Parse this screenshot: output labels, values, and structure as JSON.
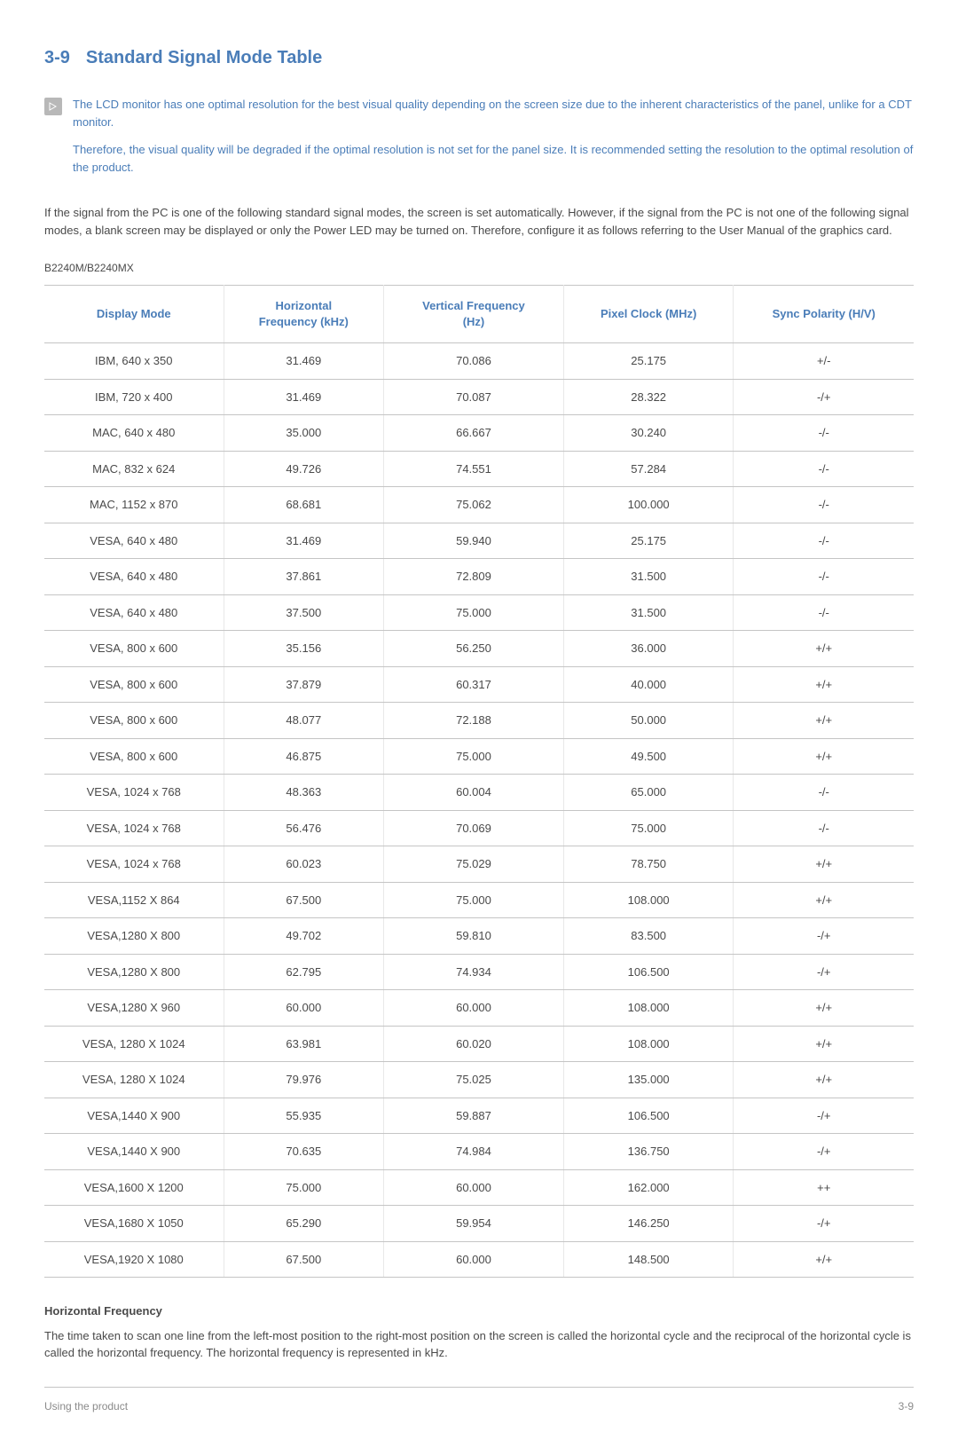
{
  "header": {
    "section_number": "3-9",
    "section_title": "Standard Signal Mode Table"
  },
  "note": {
    "paragraph1": "The LCD monitor has one optimal resolution for the best visual quality depending on the screen size due to the inherent characteristics of the panel, unlike for a CDT monitor.",
    "paragraph2": "Therefore, the visual quality will be degraded if the optimal resolution is not set for the panel size. It is recommended setting the resolution to the optimal resolution of the product."
  },
  "intro_paragraph": "If the signal from the PC is one of the following standard signal modes, the screen is set automatically. However, if the signal from the PC is not one of the following signal modes, a blank screen may be displayed or only the Power LED may be turned on. Therefore, configure it as follows referring to the User Manual of the graphics card.",
  "model_label": "B2240M/B2240MX",
  "table": {
    "columns": [
      "Display Mode",
      "Horizontal Frequency (kHz)",
      "Vertical Frequency (Hz)",
      "Pixel Clock (MHz)",
      "Sync Polarity (H/V)"
    ],
    "column_lines": [
      [
        "Display Mode"
      ],
      [
        "Horizontal",
        "Frequency (kHz)"
      ],
      [
        "Vertical Frequency",
        "(Hz)"
      ],
      [
        "Pixel Clock (MHz)"
      ],
      [
        "Sync Polarity (H/V)"
      ]
    ],
    "rows": [
      [
        "IBM, 640 x 350",
        "31.469",
        "70.086",
        "25.175",
        "+/-"
      ],
      [
        "IBM, 720 x 400",
        "31.469",
        "70.087",
        "28.322",
        "-/+"
      ],
      [
        "MAC, 640 x 480",
        "35.000",
        "66.667",
        "30.240",
        "-/-"
      ],
      [
        "MAC, 832 x 624",
        "49.726",
        "74.551",
        "57.284",
        "-/-"
      ],
      [
        "MAC, 1152 x 870",
        "68.681",
        "75.062",
        "100.000",
        "-/-"
      ],
      [
        "VESA, 640 x 480",
        "31.469",
        "59.940",
        "25.175",
        "-/-"
      ],
      [
        "VESA, 640 x 480",
        "37.861",
        "72.809",
        "31.500",
        "-/-"
      ],
      [
        "VESA, 640 x 480",
        "37.500",
        "75.000",
        "31.500",
        "-/-"
      ],
      [
        "VESA, 800 x 600",
        "35.156",
        "56.250",
        "36.000",
        "+/+"
      ],
      [
        "VESA, 800 x 600",
        "37.879",
        "60.317",
        "40.000",
        "+/+"
      ],
      [
        "VESA, 800 x 600",
        "48.077",
        "72.188",
        "50.000",
        "+/+"
      ],
      [
        "VESA, 800 x 600",
        "46.875",
        "75.000",
        "49.500",
        "+/+"
      ],
      [
        "VESA, 1024 x 768",
        "48.363",
        "60.004",
        "65.000",
        "-/-"
      ],
      [
        "VESA, 1024 x 768",
        "56.476",
        "70.069",
        "75.000",
        "-/-"
      ],
      [
        "VESA, 1024 x 768",
        "60.023",
        "75.029",
        "78.750",
        "+/+"
      ],
      [
        "VESA,1152 X 864",
        "67.500",
        "75.000",
        "108.000",
        "+/+"
      ],
      [
        "VESA,1280 X 800",
        "49.702",
        "59.810",
        "83.500",
        "-/+"
      ],
      [
        "VESA,1280 X 800",
        "62.795",
        "74.934",
        "106.500",
        "-/+"
      ],
      [
        "VESA,1280 X 960",
        "60.000",
        "60.000",
        "108.000",
        "+/+"
      ],
      [
        "VESA, 1280 X 1024",
        "63.981",
        "60.020",
        "108.000",
        "+/+"
      ],
      [
        "VESA, 1280 X 1024",
        "79.976",
        "75.025",
        "135.000",
        "+/+"
      ],
      [
        "VESA,1440 X 900",
        "55.935",
        "59.887",
        "106.500",
        "-/+"
      ],
      [
        "VESA,1440 X 900",
        "70.635",
        "74.984",
        "136.750",
        "-/+"
      ],
      [
        "VESA,1600 X 1200",
        "75.000",
        "60.000",
        "162.000",
        "++"
      ],
      [
        "VESA,1680 X 1050",
        "65.290",
        "59.954",
        "146.250",
        "-/+"
      ],
      [
        "VESA,1920 X 1080",
        "67.500",
        "60.000",
        "148.500",
        "+/+"
      ]
    ]
  },
  "horizontal_frequency": {
    "heading": "Horizontal Frequency",
    "text": "The time taken to scan one line from the left-most position to the right-most position on the screen is called the horizontal cycle and the reciprocal of the horizontal cycle is called the horizontal frequency. The horizontal frequency is represented in kHz."
  },
  "footer": {
    "left": "Using the product",
    "right": "3-9"
  },
  "colors": {
    "accent": "#4a7db8",
    "text": "#4a4a4a",
    "border": "#c5c5c5",
    "light_border": "#e8e8e8",
    "footer_text": "#8a8a8a",
    "icon_bg": "#b8b8b8"
  }
}
